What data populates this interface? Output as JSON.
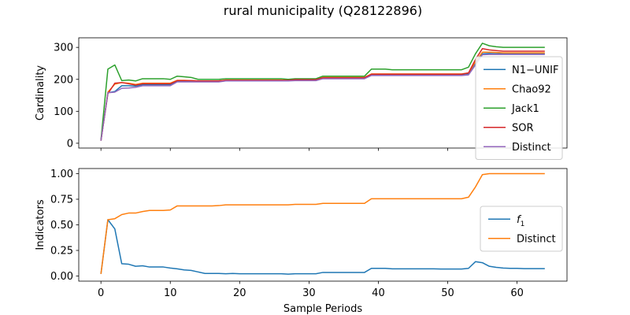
{
  "title": "rural municipality (Q28122896)",
  "chart_data": [
    {
      "type": "line",
      "title": "",
      "xlabel": "",
      "ylabel": "Cardinality",
      "xlim": [
        -3.2,
        67.2
      ],
      "ylim": [
        -15,
        330
      ],
      "yticks": [
        0,
        100,
        200,
        300
      ],
      "xticks": [
        0,
        10,
        20,
        30,
        40,
        50,
        60
      ],
      "show_xtick_labels": false,
      "grid": false,
      "legend_position": "center-right",
      "x": [
        0,
        1,
        2,
        3,
        4,
        5,
        6,
        7,
        8,
        9,
        10,
        11,
        12,
        13,
        14,
        15,
        16,
        17,
        18,
        19,
        20,
        21,
        22,
        23,
        24,
        25,
        26,
        27,
        28,
        29,
        30,
        31,
        32,
        33,
        34,
        35,
        36,
        37,
        38,
        39,
        40,
        41,
        42,
        43,
        44,
        45,
        46,
        47,
        48,
        49,
        50,
        51,
        52,
        53,
        54,
        55,
        56,
        57,
        58,
        59,
        60,
        61,
        62,
        63,
        64
      ],
      "series": [
        {
          "name": "N1−UNIF",
          "color": "#1f77b4",
          "values": [
            8,
            158,
            162,
            180,
            180,
            179,
            183,
            183,
            183,
            183,
            183,
            195,
            195,
            195,
            195,
            195,
            195,
            195,
            197,
            197,
            197,
            197,
            197,
            197,
            197,
            197,
            197,
            197,
            198,
            198,
            198,
            198,
            205,
            205,
            205,
            205,
            205,
            205,
            205,
            215,
            215,
            215,
            215,
            215,
            215,
            215,
            215,
            215,
            215,
            215,
            215,
            215,
            215,
            218,
            250,
            280,
            281,
            280,
            280,
            280,
            280,
            280,
            280,
            280,
            280
          ]
        },
        {
          "name": "Chao92",
          "color": "#ff7f0e",
          "values": [
            8,
            160,
            185,
            190,
            188,
            184,
            188,
            188,
            188,
            188,
            188,
            197,
            197,
            196,
            195,
            195,
            195,
            195,
            198,
            198,
            198,
            198,
            198,
            198,
            198,
            198,
            198,
            198,
            200,
            200,
            200,
            200,
            206,
            206,
            206,
            206,
            206,
            206,
            206,
            217,
            217,
            217,
            217,
            217,
            217,
            217,
            217,
            217,
            217,
            217,
            217,
            217,
            217,
            220,
            255,
            285,
            285,
            284,
            283,
            283,
            283,
            283,
            283,
            283,
            283
          ]
        },
        {
          "name": "Jack1",
          "color": "#2ca02c",
          "values": [
            10,
            232,
            245,
            196,
            198,
            195,
            202,
            202,
            202,
            202,
            200,
            210,
            208,
            206,
            200,
            200,
            200,
            200,
            202,
            202,
            202,
            202,
            202,
            202,
            202,
            202,
            202,
            200,
            202,
            202,
            202,
            202,
            210,
            210,
            210,
            210,
            210,
            210,
            210,
            232,
            232,
            232,
            230,
            230,
            230,
            230,
            230,
            230,
            230,
            230,
            230,
            230,
            230,
            238,
            280,
            313,
            305,
            302,
            300,
            300,
            300,
            300,
            300,
            300,
            300
          ]
        },
        {
          "name": "SOR",
          "color": "#d62728",
          "values": [
            8,
            155,
            188,
            190,
            186,
            182,
            186,
            186,
            186,
            186,
            186,
            196,
            196,
            196,
            195,
            195,
            195,
            195,
            197,
            197,
            197,
            197,
            197,
            197,
            197,
            197,
            197,
            197,
            199,
            199,
            199,
            199,
            205,
            205,
            205,
            205,
            205,
            205,
            205,
            216,
            216,
            216,
            216,
            216,
            216,
            216,
            216,
            216,
            216,
            216,
            216,
            216,
            216,
            220,
            262,
            296,
            292,
            290,
            288,
            288,
            288,
            288,
            288,
            288,
            288
          ]
        },
        {
          "name": "Distinct",
          "color": "#9467bd",
          "values": [
            8,
            158,
            160,
            172,
            173,
            175,
            180,
            180,
            180,
            180,
            180,
            192,
            192,
            192,
            192,
            192,
            192,
            192,
            195,
            195,
            195,
            195,
            195,
            195,
            195,
            195,
            195,
            195,
            196,
            196,
            196,
            196,
            202,
            202,
            202,
            202,
            202,
            202,
            202,
            212,
            212,
            212,
            212,
            212,
            212,
            212,
            212,
            212,
            212,
            212,
            212,
            212,
            212,
            214,
            245,
            277,
            278,
            278,
            278,
            278,
            278,
            278,
            278,
            278,
            278
          ]
        }
      ]
    },
    {
      "type": "line",
      "title": "",
      "xlabel": "Sample Periods",
      "ylabel": "Indicators",
      "xlim": [
        -3.2,
        67.2
      ],
      "ylim": [
        -0.05,
        1.05
      ],
      "yticks": [
        "0.00",
        "0.25",
        "0.50",
        "0.75",
        "1.00"
      ],
      "xticks": [
        0,
        10,
        20,
        30,
        40,
        50,
        60
      ],
      "grid": false,
      "legend_position": "center-right",
      "x": [
        0,
        1,
        2,
        3,
        4,
        5,
        6,
        7,
        8,
        9,
        10,
        11,
        12,
        13,
        14,
        15,
        16,
        17,
        18,
        19,
        20,
        21,
        22,
        23,
        24,
        25,
        26,
        27,
        28,
        29,
        30,
        31,
        32,
        33,
        34,
        35,
        36,
        37,
        38,
        39,
        40,
        41,
        42,
        43,
        44,
        45,
        46,
        47,
        48,
        49,
        50,
        51,
        52,
        53,
        54,
        55,
        56,
        57,
        58,
        59,
        60,
        61,
        62,
        63,
        64
      ],
      "series": [
        {
          "name": "f",
          "name_subscript": "1",
          "color": "#1f77b4",
          "values": [
            0.02,
            0.55,
            0.46,
            0.12,
            0.115,
            0.095,
            0.1,
            0.088,
            0.088,
            0.088,
            0.078,
            0.07,
            0.06,
            0.055,
            0.04,
            0.025,
            0.025,
            0.025,
            0.022,
            0.025,
            0.022,
            0.022,
            0.022,
            0.022,
            0.022,
            0.022,
            0.022,
            0.018,
            0.022,
            0.022,
            0.022,
            0.022,
            0.035,
            0.035,
            0.035,
            0.035,
            0.035,
            0.035,
            0.035,
            0.075,
            0.075,
            0.075,
            0.07,
            0.07,
            0.07,
            0.07,
            0.07,
            0.07,
            0.07,
            0.068,
            0.068,
            0.068,
            0.068,
            0.075,
            0.14,
            0.13,
            0.095,
            0.085,
            0.078,
            0.075,
            0.075,
            0.072,
            0.072,
            0.072,
            0.072
          ]
        },
        {
          "name": "Distinct",
          "color": "#ff7f0e",
          "values": [
            0.02,
            0.55,
            0.56,
            0.6,
            0.615,
            0.615,
            0.63,
            0.64,
            0.64,
            0.64,
            0.645,
            0.685,
            0.685,
            0.685,
            0.685,
            0.685,
            0.685,
            0.688,
            0.695,
            0.695,
            0.695,
            0.695,
            0.695,
            0.695,
            0.695,
            0.695,
            0.695,
            0.695,
            0.7,
            0.7,
            0.7,
            0.7,
            0.71,
            0.71,
            0.71,
            0.71,
            0.71,
            0.71,
            0.71,
            0.755,
            0.755,
            0.755,
            0.755,
            0.755,
            0.755,
            0.755,
            0.755,
            0.755,
            0.755,
            0.755,
            0.755,
            0.755,
            0.755,
            0.77,
            0.87,
            0.99,
            1.0,
            1.0,
            1.0,
            1.0,
            1.0,
            1.0,
            1.0,
            1.0,
            1.0
          ]
        }
      ]
    }
  ]
}
